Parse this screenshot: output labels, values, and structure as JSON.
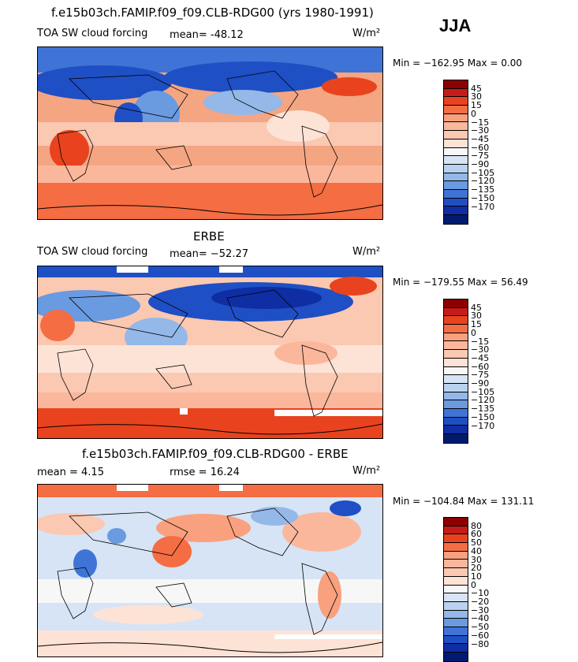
{
  "season": "JJA",
  "colors": {
    "forcing": [
      "#8b0000",
      "#c61b1b",
      "#e8431e",
      "#f46d43",
      "#f9a07e",
      "#fbb79c",
      "#fbc8b2",
      "#fde3d6",
      "#f7f7f7",
      "#d6e4f5",
      "#b9d2ef",
      "#94b8e8",
      "#6a9ae0",
      "#3f74d6",
      "#1f4fc4",
      "#0f2ea3",
      "#001a70"
    ],
    "diff": [
      "#8b0000",
      "#c61b1b",
      "#e8431e",
      "#f46d43",
      "#f9a07e",
      "#fbb79c",
      "#fbc8b2",
      "#fde3d6",
      "#f7f7f7",
      "#d6e4f5",
      "#b9d2ef",
      "#94b8e8",
      "#6a9ae0",
      "#3f74d6",
      "#1f4fc4",
      "#0f2ea3",
      "#001a70"
    ]
  },
  "chart_data": [
    {
      "type": "heatmap",
      "title": "f.e15b03ch.FAMIP.f09_f09.CLB-RDG00 (yrs 1980-1991)",
      "subtitle": "TOA SW cloud forcing",
      "mean_text": "mean= -48.12",
      "units": "W/m²",
      "minmax_text": "Min = −162.95  Max =    0.00",
      "min": -162.95,
      "max": 0.0,
      "mean": -48.12,
      "colorbar_ticks": [
        "45",
        "30",
        "15",
        "0",
        "−15",
        "−30",
        "−45",
        "−60",
        "−75",
        "−90",
        "−105",
        "−120",
        "−135",
        "−150",
        "−170"
      ]
    },
    {
      "type": "heatmap",
      "title": "ERBE",
      "subtitle": "TOA SW cloud forcing",
      "mean_text": "mean= −52.27",
      "units": "W/m²",
      "minmax_text": "Min = −179.55  Max =   56.49",
      "min": -179.55,
      "max": 56.49,
      "mean": -52.27,
      "colorbar_ticks": [
        "45",
        "30",
        "15",
        "0",
        "−15",
        "−30",
        "−45",
        "−60",
        "−75",
        "−90",
        "−105",
        "−120",
        "−135",
        "−150",
        "−170"
      ]
    },
    {
      "type": "heatmap",
      "title": "f.e15b03ch.FAMIP.f09_f09.CLB-RDG00 - ERBE",
      "mean_text": "mean =    4.15",
      "rmse_text": "rmse =   16.24",
      "units": "W/m²",
      "minmax_text": "Min = −104.84  Max =  131.11",
      "min": -104.84,
      "max": 131.11,
      "mean": 4.15,
      "rmse": 16.24,
      "colorbar_ticks": [
        "80",
        "60",
        "50",
        "40",
        "30",
        "20",
        "10",
        "0",
        "−10",
        "−20",
        "−30",
        "−40",
        "−50",
        "−60",
        "−80"
      ]
    }
  ]
}
